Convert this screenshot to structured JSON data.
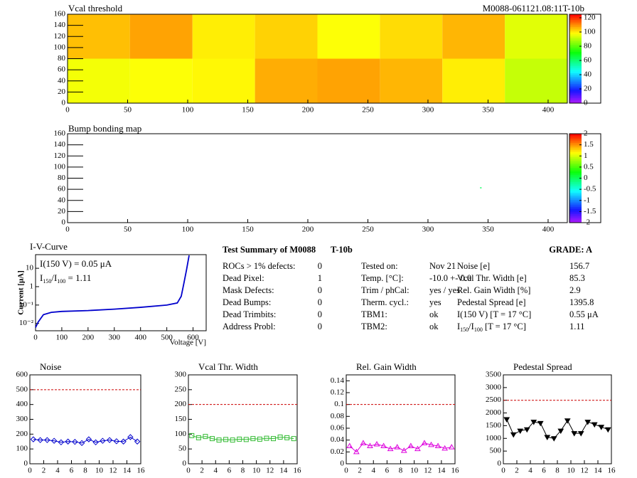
{
  "chart_data": [
    {
      "type": "heatmap",
      "title": "Vcal threshold",
      "subtitle": "M0088-061121.08:11T-10b",
      "xbins": [
        0,
        52,
        104,
        156,
        208,
        260,
        312,
        364,
        416
      ],
      "ybins": [
        0,
        80,
        160
      ],
      "z": [
        [
          97,
          98,
          99,
          107,
          108,
          106,
          100,
          92
        ],
        [
          105,
          108,
          100,
          103,
          98,
          102,
          106,
          95
        ]
      ],
      "xlim": [
        0,
        416
      ],
      "ylim": [
        0,
        160
      ],
      "xticks": [
        0,
        50,
        100,
        150,
        200,
        250,
        300,
        350,
        400
      ],
      "yticks": [
        0,
        20,
        40,
        60,
        80,
        100,
        120,
        140,
        160
      ],
      "zlim": [
        0,
        125
      ],
      "zticks": [
        0,
        20,
        40,
        60,
        80,
        100,
        120
      ]
    },
    {
      "type": "pointmap",
      "title": "Bump bonding map",
      "x": [
        344
      ],
      "y": [
        63
      ],
      "z": [
        0
      ],
      "xlim": [
        0,
        416
      ],
      "ylim": [
        0,
        160
      ],
      "xticks": [
        0,
        50,
        100,
        150,
        200,
        250,
        300,
        350,
        400
      ],
      "yticks": [
        0,
        20,
        40,
        60,
        80,
        100,
        120,
        140,
        160
      ],
      "zlim": [
        -2,
        2
      ],
      "zticks": [
        -2,
        -1.5,
        -1,
        -0.5,
        0,
        0.5,
        1,
        1.5,
        2
      ]
    },
    {
      "type": "line",
      "title": "I-V-Curve",
      "x_label": "Voltage [V]",
      "y_label": "Current [μA]",
      "log_y": true,
      "color": "#0000cc",
      "x": [
        0,
        10,
        30,
        60,
        100,
        200,
        300,
        400,
        500,
        540,
        555,
        565,
        575,
        585
      ],
      "values": [
        0.006,
        0.012,
        0.03,
        0.04,
        0.045,
        0.05,
        0.06,
        0.075,
        0.1,
        0.13,
        0.3,
        1.5,
        8,
        50
      ],
      "xlim": [
        0,
        650
      ],
      "ylim": [
        0.004,
        55
      ],
      "xticks": [
        0,
        100,
        200,
        300,
        400,
        500,
        600
      ],
      "yticks": [
        {
          "value": 0.01,
          "label": "10⁻²"
        },
        {
          "value": 0.1,
          "label": "10⁻¹"
        },
        1,
        10
      ],
      "annotations": [
        [
          "I(150 V) = 0.05 μA"
        ],
        [
          "I",
          "150",
          "/I",
          "100",
          " =  1.11"
        ]
      ]
    },
    {
      "type": "line",
      "title": "Noise",
      "marker": "diamond",
      "color": "#0000cc",
      "ref_line": 500,
      "x": [
        0.5,
        1.5,
        2.5,
        3.5,
        4.5,
        5.5,
        6.5,
        7.5,
        8.5,
        9.5,
        10.5,
        11.5,
        12.5,
        13.5,
        14.5,
        15.5
      ],
      "values": [
        165,
        160,
        160,
        155,
        145,
        150,
        148,
        140,
        165,
        145,
        155,
        160,
        152,
        150,
        180,
        150
      ],
      "xlim": [
        0,
        16
      ],
      "ylim": [
        0,
        600
      ],
      "xticks": [
        0,
        2,
        4,
        6,
        8,
        10,
        12,
        14,
        16
      ],
      "yticks": [
        0,
        100,
        200,
        300,
        400,
        500,
        600
      ]
    },
    {
      "type": "line",
      "title": "Vcal Thr. Width",
      "marker": "square",
      "color": "#33bb33",
      "ref_line": 200,
      "x": [
        0.5,
        1.5,
        2.5,
        3.5,
        4.5,
        5.5,
        6.5,
        7.5,
        8.5,
        9.5,
        10.5,
        11.5,
        12.5,
        13.5,
        14.5,
        15.5
      ],
      "values": [
        95,
        88,
        92,
        85,
        80,
        82,
        80,
        83,
        82,
        85,
        83,
        86,
        85,
        90,
        88,
        85
      ],
      "xlim": [
        0,
        16
      ],
      "ylim": [
        0,
        300
      ],
      "xticks": [
        0,
        2,
        4,
        6,
        8,
        10,
        12,
        14,
        16
      ],
      "yticks": [
        0,
        50,
        100,
        150,
        200,
        250,
        300
      ]
    },
    {
      "type": "line",
      "title": "Rel. Gain Width",
      "marker": "triangle-up",
      "color": "#dd00dd",
      "ref_line": 0.1,
      "x": [
        0.5,
        1.5,
        2.5,
        3.5,
        4.5,
        5.5,
        6.5,
        7.5,
        8.5,
        9.5,
        10.5,
        11.5,
        12.5,
        13.5,
        14.5,
        15.5
      ],
      "values": [
        0.03,
        0.02,
        0.035,
        0.03,
        0.033,
        0.03,
        0.025,
        0.028,
        0.022,
        0.03,
        0.025,
        0.035,
        0.032,
        0.03,
        0.026,
        0.028
      ],
      "xlim": [
        0,
        16
      ],
      "ylim": [
        0,
        0.15
      ],
      "xticks": [
        0,
        2,
        4,
        6,
        8,
        10,
        12,
        14,
        16
      ],
      "yticks": [
        0,
        0.02,
        0.04,
        0.06,
        0.08,
        0.1,
        0.12,
        0.14
      ]
    },
    {
      "type": "line",
      "title": "Pedestal Spread",
      "marker": "triangle-down",
      "color": "#000000",
      "ref_line": 2500,
      "x": [
        0.5,
        1.5,
        2.5,
        3.5,
        4.5,
        5.5,
        6.5,
        7.5,
        8.5,
        9.5,
        10.5,
        11.5,
        12.5,
        13.5,
        14.5,
        15.5
      ],
      "values": [
        1750,
        1150,
        1300,
        1350,
        1650,
        1600,
        1050,
        1000,
        1300,
        1700,
        1200,
        1200,
        1650,
        1550,
        1450,
        1350
      ],
      "xlim": [
        0,
        16
      ],
      "ylim": [
        0,
        3500
      ],
      "xticks": [
        0,
        2,
        4,
        6,
        8,
        10,
        12,
        14,
        16
      ],
      "yticks": [
        0,
        500,
        1000,
        1500,
        2000,
        2500,
        3000,
        3500
      ]
    }
  ],
  "summary": {
    "title": "Test Summary of M0088",
    "tag": "T-10b",
    "grade": "GRADE:  A",
    "defects": [
      [
        "ROCs > 1% defects:",
        0
      ],
      [
        "Dead Pixel:",
        1
      ],
      [
        "Mask Defects:",
        0
      ],
      [
        "Dead Bumps:",
        0
      ],
      [
        "Dead Trimbits:",
        0
      ],
      [
        "Address Probl:",
        0
      ]
    ],
    "conditions": [
      [
        "Tested on:",
        "Nov 21"
      ],
      [
        "Temp. [°C]:",
        "-10.0 +- 0.0"
      ],
      [
        "Trim / phCal:",
        "yes / yes"
      ],
      [
        "Therm. cycl.:",
        "yes"
      ],
      [
        "TBM1:",
        "ok"
      ],
      [
        "TBM2:",
        "ok"
      ]
    ],
    "results": [
      [
        [
          "Noise [e]"
        ],
        156.7
      ],
      [
        [
          "Vcal Thr. Width [e]"
        ],
        85.3
      ],
      [
        [
          "Rel. Gain Width [%]"
        ],
        2.9
      ],
      [
        [
          "Pedestal Spread [e]"
        ],
        1395.8
      ],
      [
        [
          "I(150 V) [T = 17 °C]"
        ],
        "0.55 μA"
      ],
      [
        [
          "I",
          "150",
          "/I",
          "100",
          "  [T = 17 °C]"
        ],
        1.11
      ]
    ]
  }
}
